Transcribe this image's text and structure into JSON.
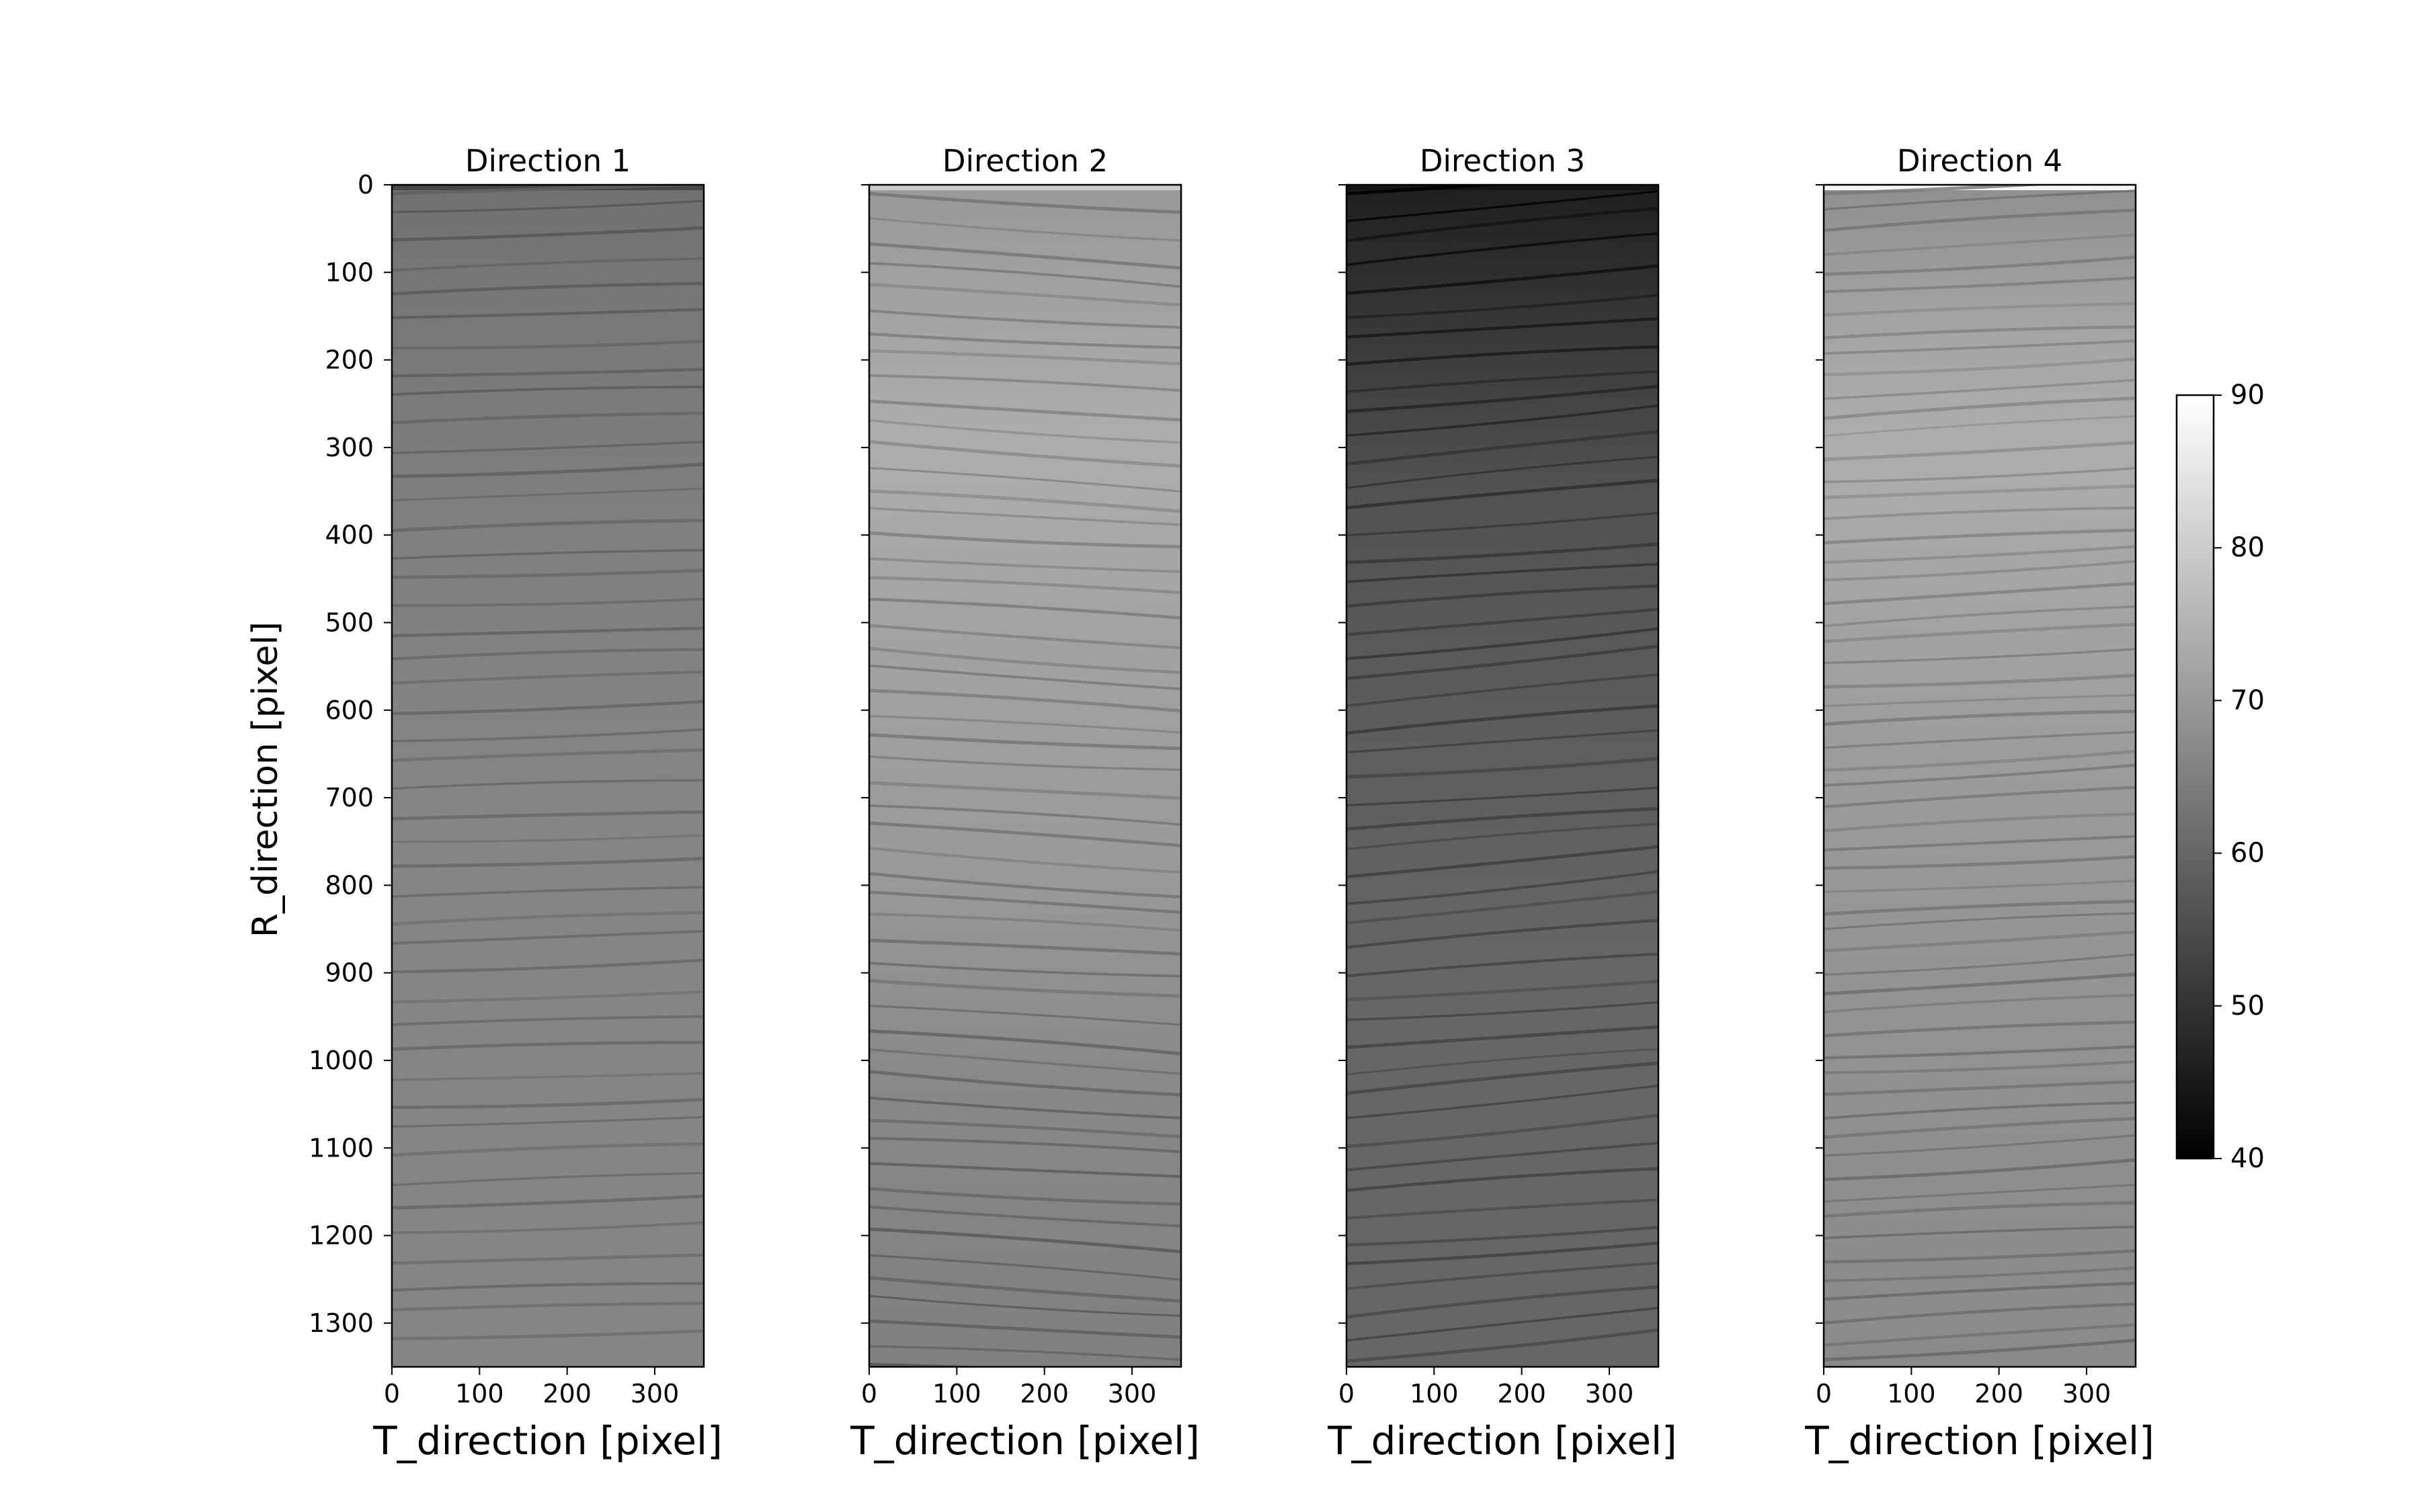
{
  "chart_data": {
    "type": "heatmap",
    "figure": {
      "ylabel": "R_direction [pixel]",
      "colormap": "gray",
      "colorbar": {
        "min": 40,
        "max": 90,
        "ticks": [
          40,
          50,
          60,
          70,
          80,
          90
        ]
      }
    },
    "panels": [
      {
        "title": "Direction 1",
        "xlabel": "T_direction [pixel]",
        "xlim": [
          0,
          356
        ],
        "ylim": [
          1350,
          0
        ],
        "xticks": [
          0,
          100,
          200,
          300
        ],
        "yticks": [
          0,
          100,
          200,
          300,
          400,
          500,
          600,
          700,
          800,
          900,
          1000,
          1100,
          1200,
          1300
        ],
        "value_profile": [
          [
            0,
            62
          ],
          [
            80,
            63
          ],
          [
            400,
            65
          ],
          [
            700,
            66
          ],
          [
            1000,
            66
          ],
          [
            1350,
            66
          ]
        ],
        "top_value": 54,
        "ring_spacing": 28,
        "ring_strength": 6,
        "ring_tilt": -0.03
      },
      {
        "title": "Direction 2",
        "xlabel": "T_direction [pixel]",
        "xlim": [
          0,
          356
        ],
        "ylim": [
          1350,
          0
        ],
        "xticks": [
          0,
          100,
          200,
          300
        ],
        "yticks": [
          0,
          100,
          200,
          300,
          400,
          500,
          600,
          700,
          800,
          900,
          1000,
          1100,
          1200,
          1300
        ],
        "value_profile": [
          [
            0,
            70
          ],
          [
            150,
            72
          ],
          [
            300,
            74
          ],
          [
            500,
            72
          ],
          [
            800,
            70
          ],
          [
            1000,
            67
          ],
          [
            1350,
            65
          ]
        ],
        "top_value": 80,
        "ring_spacing": 24,
        "ring_strength": 8,
        "ring_tilt": 0.06
      },
      {
        "title": "Direction 3",
        "xlabel": "T_direction [pixel]",
        "xlim": [
          0,
          356
        ],
        "ylim": [
          1350,
          0
        ],
        "xticks": [
          0,
          100,
          200,
          300
        ],
        "yticks": [
          0,
          100,
          200,
          300,
          400,
          500,
          600,
          700,
          800,
          900,
          1000,
          1100,
          1200,
          1300
        ],
        "value_profile": [
          [
            0,
            46
          ],
          [
            100,
            49
          ],
          [
            200,
            52
          ],
          [
            350,
            56
          ],
          [
            600,
            58
          ],
          [
            900,
            60
          ],
          [
            1350,
            60
          ]
        ],
        "top_value": 44,
        "ring_spacing": 26,
        "ring_strength": 7,
        "ring_tilt": -0.08
      },
      {
        "title": "Direction 4",
        "xlabel": "T_direction [pixel]",
        "xlim": [
          0,
          356
        ],
        "ylim": [
          1350,
          0
        ],
        "xticks": [
          0,
          100,
          200,
          300
        ],
        "yticks": [
          0,
          100,
          200,
          300,
          400,
          500,
          600,
          700,
          800,
          900,
          1000,
          1100,
          1200,
          1300
        ],
        "value_profile": [
          [
            0,
            68
          ],
          [
            150,
            72
          ],
          [
            300,
            74
          ],
          [
            600,
            71
          ],
          [
            900,
            69
          ],
          [
            1350,
            67
          ]
        ],
        "top_value": 88,
        "ring_spacing": 22,
        "ring_strength": 7,
        "ring_tilt": -0.05
      }
    ]
  }
}
